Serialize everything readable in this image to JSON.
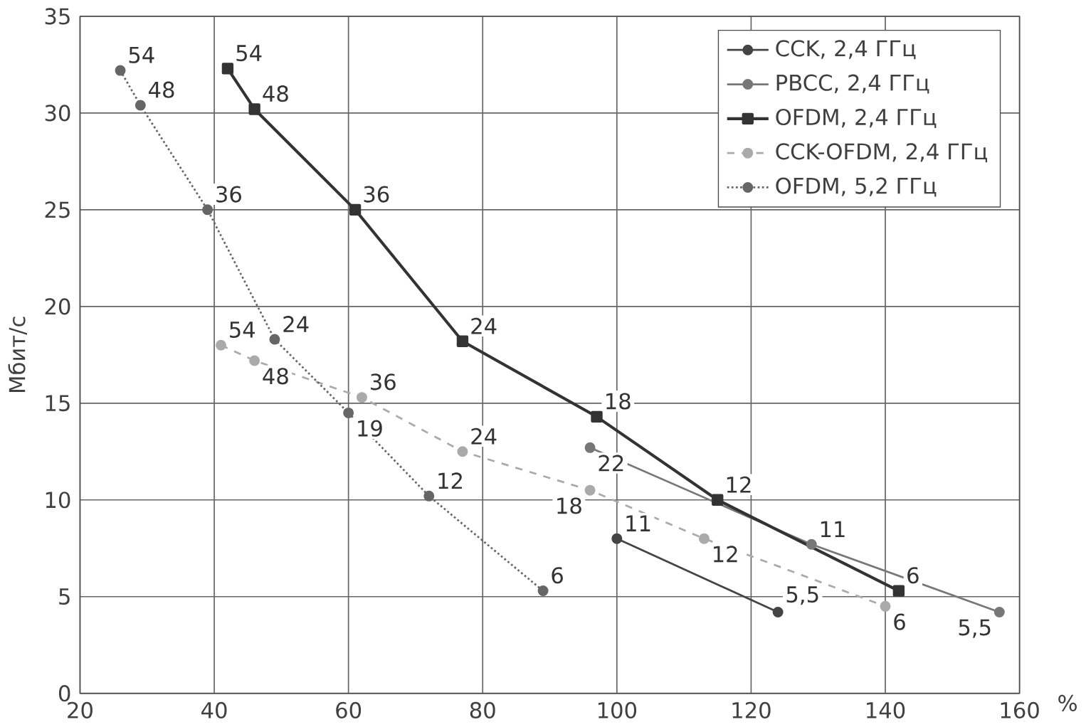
{
  "chart_data": {
    "type": "line",
    "xlabel": "%",
    "ylabel": "Мбит/с",
    "xlim": [
      20,
      160
    ],
    "xticks": [
      20,
      40,
      60,
      80,
      100,
      120,
      140,
      160
    ],
    "ylim": [
      0,
      35
    ],
    "yticks": [
      0,
      5,
      10,
      15,
      20,
      25,
      30,
      35
    ],
    "grid": true,
    "legend": "top right",
    "series": [
      {
        "name": "CCK, 2,4 ГГц",
        "color": "#444444",
        "marker": "circle",
        "line_style": "solid",
        "x": [
          100,
          124
        ],
        "values": [
          8,
          4.2
        ]
      },
      {
        "name": "PBCC, 2,4 ГГц",
        "color": "#777777",
        "marker": "circle",
        "line_style": "solid",
        "x": [
          96,
          129,
          157
        ],
        "values": [
          12.7,
          7.7,
          4.2
        ]
      },
      {
        "name": "OFDM, 2,4 ГГц",
        "color": "#333333",
        "marker": "square",
        "line_style": "solid",
        "x": [
          42,
          46,
          61,
          77,
          97,
          115,
          142
        ],
        "values": [
          32.3,
          30.2,
          25,
          18.2,
          14.3,
          10,
          5.3
        ]
      },
      {
        "name": "CCK-OFDM, 2,4 ГГц",
        "color": "#aaaaaa",
        "marker": "circle",
        "line_style": "dashed",
        "x": [
          41,
          46,
          62,
          77,
          96,
          113,
          140
        ],
        "values": [
          18,
          17.2,
          15.3,
          12.5,
          10.5,
          8,
          4.5
        ]
      },
      {
        "name": "OFDM, 5,2 ГГц",
        "color": "#666666",
        "marker": "circle",
        "line_style": "dotted",
        "x": [
          26,
          29,
          39,
          49,
          60,
          72,
          89
        ],
        "values": [
          32.2,
          30.4,
          25,
          18.3,
          14.5,
          10.2,
          5.3
        ]
      }
    ],
    "annotations": [
      {
        "text": "11",
        "x": 100,
        "y": 8
      },
      {
        "text": "5,5",
        "x": 124,
        "y": 4.2
      },
      {
        "text": "22",
        "x": 96,
        "y": 12.7
      },
      {
        "text": "11",
        "x": 129,
        "y": 7.7
      },
      {
        "text": "5,5",
        "x": 157,
        "y": 4.2
      },
      {
        "text": "54",
        "x": 42,
        "y": 32.3
      },
      {
        "text": "48",
        "x": 46,
        "y": 30.2
      },
      {
        "text": "36",
        "x": 61,
        "y": 25
      },
      {
        "text": "24",
        "x": 77,
        "y": 18.2
      },
      {
        "text": "18",
        "x": 97,
        "y": 14.3
      },
      {
        "text": "12",
        "x": 115,
        "y": 10
      },
      {
        "text": "6",
        "x": 142,
        "y": 5.3
      },
      {
        "text": "54",
        "x": 41,
        "y": 18
      },
      {
        "text": "48",
        "x": 46,
        "y": 17.2
      },
      {
        "text": "36",
        "x": 62,
        "y": 15.3
      },
      {
        "text": "24",
        "x": 77,
        "y": 12.5
      },
      {
        "text": "18",
        "x": 96,
        "y": 10.5
      },
      {
        "text": "12",
        "x": 113,
        "y": 8
      },
      {
        "text": "6",
        "x": 140,
        "y": 4.5
      },
      {
        "text": "54",
        "x": 26,
        "y": 32.2
      },
      {
        "text": "48",
        "x": 29,
        "y": 30.4
      },
      {
        "text": "36",
        "x": 39,
        "y": 25
      },
      {
        "text": "24",
        "x": 49,
        "y": 18.3
      },
      {
        "text": "19",
        "x": 60,
        "y": 14.5
      },
      {
        "text": "12",
        "x": 72,
        "y": 10.2
      },
      {
        "text": "6",
        "x": 89,
        "y": 5.3
      }
    ]
  }
}
